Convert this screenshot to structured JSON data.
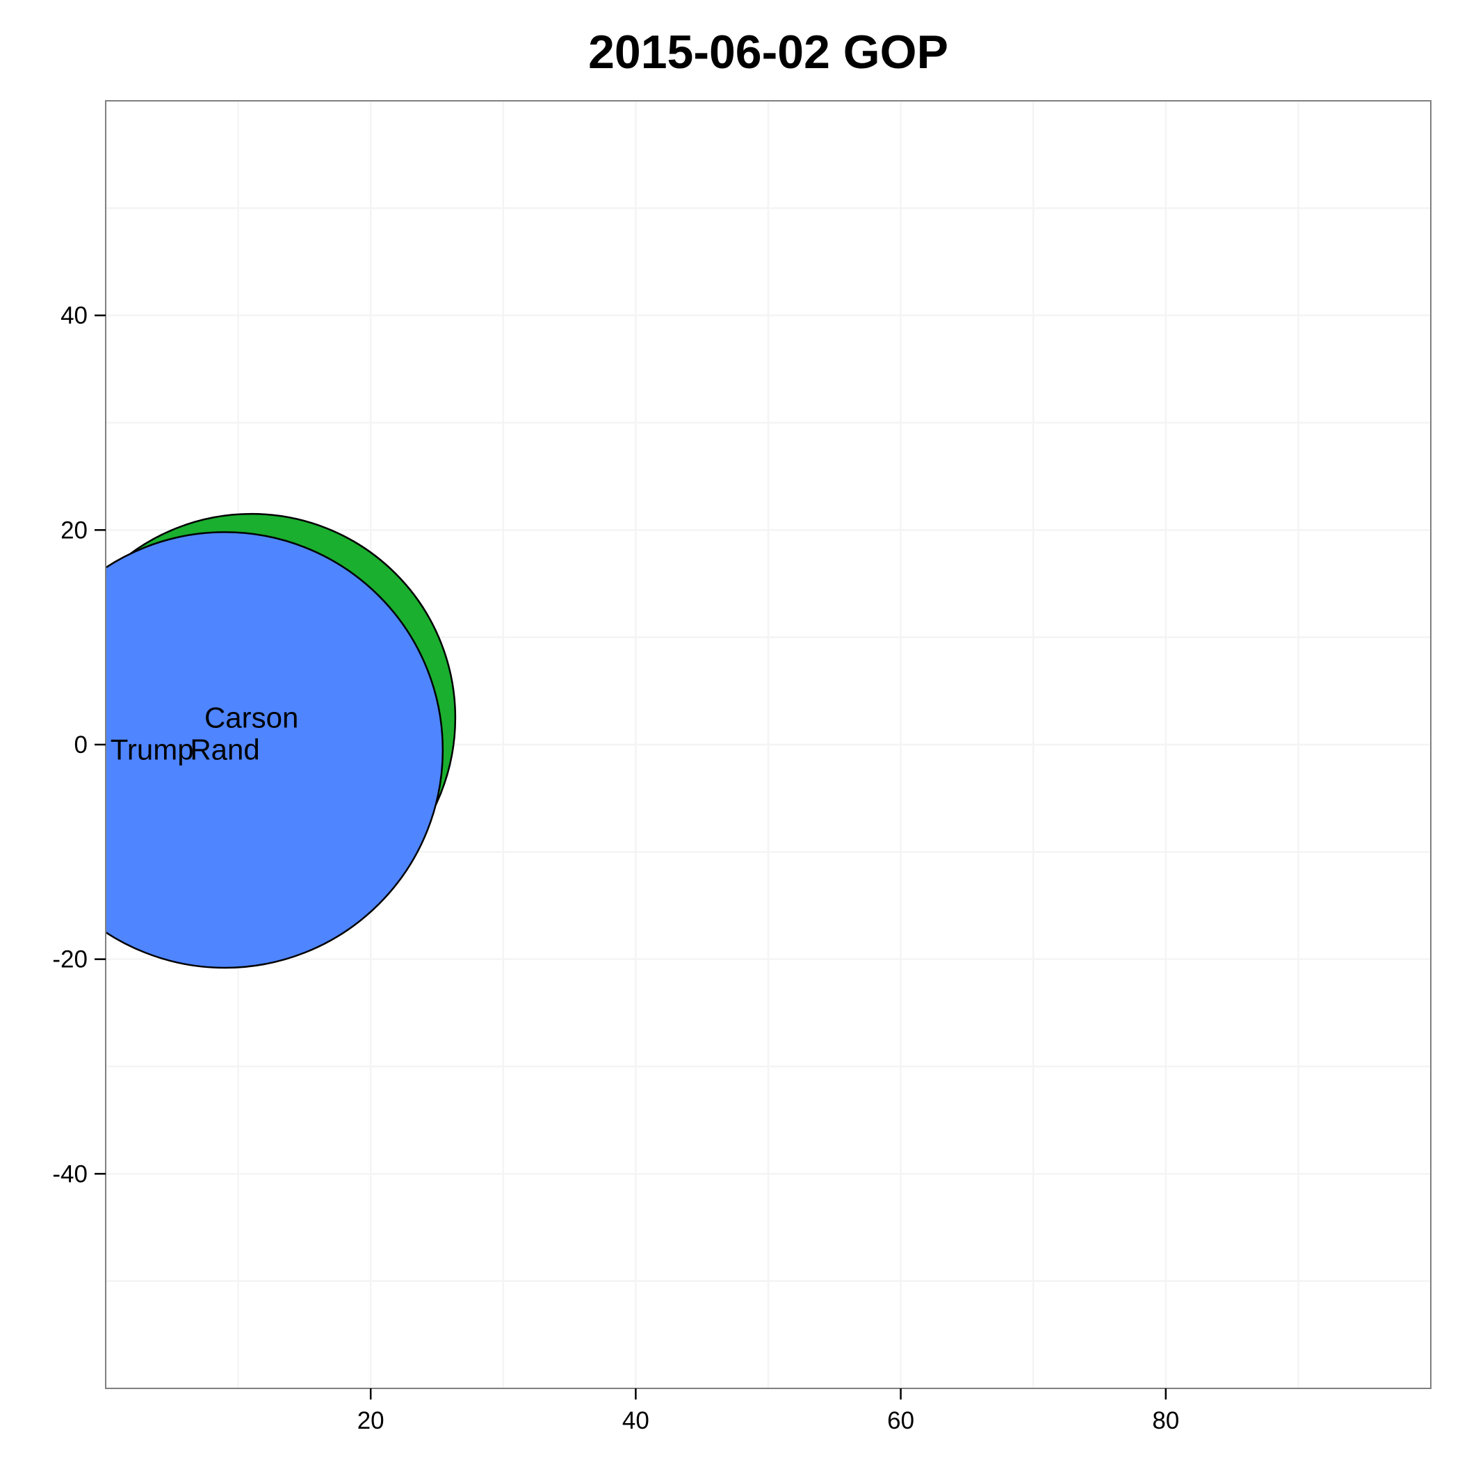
{
  "chart_data": {
    "type": "scatter",
    "title": "2015-06-02  GOP",
    "xlabel": "",
    "ylabel": "",
    "xlim": [
      0,
      100
    ],
    "ylim": [
      -60,
      60
    ],
    "x_ticks": [
      20,
      40,
      60,
      80
    ],
    "y_ticks": [
      40,
      20,
      0,
      -20,
      -40
    ],
    "grid": true,
    "series": [
      {
        "points": [
          {
            "label": "Carson",
            "x": 11,
            "y": 2.5,
            "r": 19,
            "color": "#1aaf2e"
          },
          {
            "label": "Rand",
            "x": 9,
            "y": -0.5,
            "r": 20.3,
            "color": "#4f85fe"
          },
          {
            "label": "Trump",
            "x": 3.5,
            "y": -0.5,
            "r": 0,
            "color": "#000000"
          }
        ]
      }
    ]
  }
}
